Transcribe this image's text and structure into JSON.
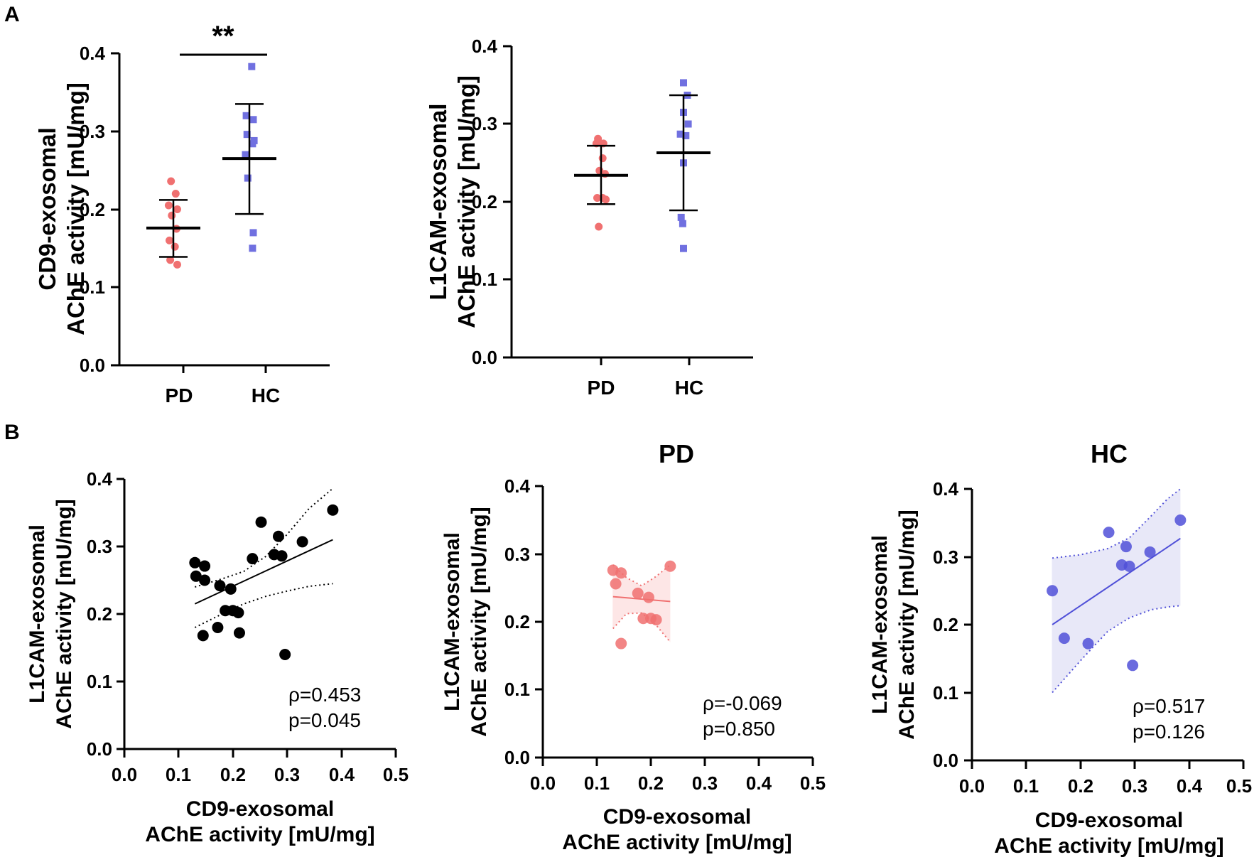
{
  "figure": {
    "panel_a": "A",
    "panel_b": "B"
  },
  "chart_data": [
    {
      "id": "a1",
      "type": "scatter",
      "subtype": "dot-plot-mean-sd",
      "title": "",
      "ylabel_line1": "CD9-exosomal",
      "ylabel_line2": "AChE activity [mU/mg]",
      "ylim": [
        0,
        0.4
      ],
      "yticks": [
        "0.0",
        "0.1",
        "0.2",
        "0.3",
        "0.4"
      ],
      "categories": [
        "PD",
        "HC"
      ],
      "significance": "**",
      "groups": [
        {
          "name": "PD",
          "color": "#f07070",
          "marker": "circle",
          "mean": 0.176,
          "sd_low": 0.139,
          "sd_high": 0.212,
          "points": [
            [
              -0.03,
              0.236
            ],
            [
              0.03,
              0.22
            ],
            [
              -0.06,
              0.205
            ],
            [
              0.05,
              0.2
            ],
            [
              -0.02,
              0.192
            ],
            [
              0.04,
              0.175
            ],
            [
              -0.05,
              0.16
            ],
            [
              0.02,
              0.152
            ],
            [
              -0.04,
              0.135
            ],
            [
              0.05,
              0.129
            ]
          ]
        },
        {
          "name": "HC",
          "color": "#7070e0",
          "marker": "square",
          "mean": 0.265,
          "sd_low": 0.194,
          "sd_high": 0.335,
          "points": [
            [
              0.03,
              0.383
            ],
            [
              -0.04,
              0.32
            ],
            [
              0.05,
              0.315
            ],
            [
              -0.03,
              0.296
            ],
            [
              0.06,
              0.288
            ],
            [
              0.04,
              0.284
            ],
            [
              -0.05,
              0.27
            ],
            [
              -0.02,
              0.24
            ],
            [
              0.05,
              0.17
            ],
            [
              0.04,
              0.15
            ]
          ]
        }
      ]
    },
    {
      "id": "a2",
      "type": "scatter",
      "subtype": "dot-plot-mean-sd",
      "title": "",
      "ylabel_line1": "L1CAM-exosomal",
      "ylabel_line2": "AChE activity [mU/mg]",
      "ylim": [
        0,
        0.4
      ],
      "yticks": [
        "0.0",
        "0.1",
        "0.2",
        "0.3",
        "0.4"
      ],
      "categories": [
        "PD",
        "HC"
      ],
      "groups": [
        {
          "name": "PD",
          "color": "#f07070",
          "marker": "circle",
          "mean": 0.234,
          "sd_low": 0.197,
          "sd_high": 0.272,
          "points": [
            [
              -0.04,
              0.281
            ],
            [
              0.03,
              0.275
            ],
            [
              -0.06,
              0.275
            ],
            [
              0.02,
              0.256
            ],
            [
              -0.02,
              0.24
            ],
            [
              0.05,
              0.236
            ],
            [
              -0.05,
              0.205
            ],
            [
              0.02,
              0.205
            ],
            [
              0.06,
              0.203
            ],
            [
              -0.03,
              0.168
            ]
          ]
        },
        {
          "name": "HC",
          "color": "#7070e0",
          "marker": "square",
          "mean": 0.263,
          "sd_low": 0.189,
          "sd_high": 0.337,
          "points": [
            [
              0.0,
              0.353
            ],
            [
              0.05,
              0.337
            ],
            [
              0.0,
              0.315
            ],
            [
              0.06,
              0.3
            ],
            [
              0.03,
              0.285
            ],
            [
              -0.04,
              0.287
            ],
            [
              0.0,
              0.25
            ],
            [
              -0.03,
              0.18
            ],
            [
              -0.01,
              0.172
            ],
            [
              0.0,
              0.14
            ]
          ]
        }
      ]
    },
    {
      "id": "b1",
      "type": "scatter",
      "title": "",
      "xlabel_line1": "CD9-exosomal",
      "xlabel_line2": "AChE activity [mU/mg]",
      "ylabel_line1": "L1CAM-exosomal",
      "ylabel_line2": "AChE activity [mU/mg]",
      "xlim": [
        0,
        0.5
      ],
      "ylim": [
        0,
        0.4
      ],
      "xticks": [
        "0.0",
        "0.1",
        "0.2",
        "0.3",
        "0.4",
        "0.5"
      ],
      "yticks": [
        "0.0",
        "0.1",
        "0.2",
        "0.3",
        "0.4"
      ],
      "color": "#000000",
      "band_fill": "none",
      "stats_rho": "ρ=0.453",
      "stats_p": "p=0.045",
      "points": [
        [
          0.13,
          0.276
        ],
        [
          0.148,
          0.271
        ],
        [
          0.132,
          0.256
        ],
        [
          0.148,
          0.25
        ],
        [
          0.176,
          0.242
        ],
        [
          0.196,
          0.237
        ],
        [
          0.186,
          0.205
        ],
        [
          0.2,
          0.205
        ],
        [
          0.21,
          0.202
        ],
        [
          0.212,
          0.172
        ],
        [
          0.145,
          0.168
        ],
        [
          0.172,
          0.18
        ],
        [
          0.236,
          0.282
        ],
        [
          0.252,
          0.336
        ],
        [
          0.276,
          0.288
        ],
        [
          0.284,
          0.315
        ],
        [
          0.29,
          0.286
        ],
        [
          0.296,
          0.14
        ],
        [
          0.328,
          0.307
        ],
        [
          0.384,
          0.354
        ]
      ],
      "fit": [
        [
          0.13,
          0.215
        ],
        [
          0.384,
          0.31
        ]
      ],
      "ci_upper": [
        [
          0.13,
          0.24
        ],
        [
          0.18,
          0.252
        ],
        [
          0.22,
          0.263
        ],
        [
          0.26,
          0.285
        ],
        [
          0.3,
          0.318
        ],
        [
          0.34,
          0.356
        ],
        [
          0.384,
          0.386
        ]
      ],
      "ci_lower": [
        [
          0.13,
          0.18
        ],
        [
          0.18,
          0.2
        ],
        [
          0.22,
          0.215
        ],
        [
          0.26,
          0.226
        ],
        [
          0.3,
          0.234
        ],
        [
          0.34,
          0.241
        ],
        [
          0.384,
          0.245
        ]
      ]
    },
    {
      "id": "b2",
      "type": "scatter",
      "title": "PD",
      "xlabel_line1": "CD9-exosomal",
      "xlabel_line2": "AChE activity [mU/mg]",
      "ylabel_line1": "L1CAM-exosomal",
      "ylabel_line2": "AChE activity [mU/mg]",
      "xlim": [
        0,
        0.5
      ],
      "ylim": [
        0,
        0.4
      ],
      "xticks": [
        "0.0",
        "0.1",
        "0.2",
        "0.3",
        "0.4",
        "0.5"
      ],
      "yticks": [
        "0.0",
        "0.1",
        "0.2",
        "0.3",
        "0.4"
      ],
      "color": "#f07070",
      "band_fill": "#fde6e6",
      "stats_rho": "ρ=-0.069",
      "stats_p": "p=0.850",
      "points": [
        [
          0.13,
          0.276
        ],
        [
          0.145,
          0.272
        ],
        [
          0.135,
          0.256
        ],
        [
          0.236,
          0.282
        ],
        [
          0.176,
          0.242
        ],
        [
          0.196,
          0.236
        ],
        [
          0.186,
          0.205
        ],
        [
          0.2,
          0.205
        ],
        [
          0.21,
          0.203
        ],
        [
          0.145,
          0.168
        ]
      ],
      "fit": [
        [
          0.13,
          0.237
        ],
        [
          0.236,
          0.23
        ]
      ],
      "ci_upper": [
        [
          0.13,
          0.284
        ],
        [
          0.155,
          0.265
        ],
        [
          0.183,
          0.253
        ],
        [
          0.21,
          0.267
        ],
        [
          0.236,
          0.284
        ]
      ],
      "ci_lower": [
        [
          0.13,
          0.19
        ],
        [
          0.155,
          0.212
        ],
        [
          0.183,
          0.213
        ],
        [
          0.21,
          0.195
        ],
        [
          0.236,
          0.17
        ]
      ]
    },
    {
      "id": "b3",
      "type": "scatter",
      "title": "HC",
      "xlabel_line1": "CD9-exosomal",
      "xlabel_line2": "AChE activity [mU/mg]",
      "ylabel_line1": "L1CAM-exosomal",
      "ylabel_line2": "AChE activity [mU/mg]",
      "xlim": [
        0,
        0.5
      ],
      "ylim": [
        0,
        0.4
      ],
      "xticks": [
        "0.0",
        "0.1",
        "0.2",
        "0.3",
        "0.4",
        "0.5"
      ],
      "yticks": [
        "0.0",
        "0.1",
        "0.2",
        "0.3",
        "0.4"
      ],
      "color": "#5050d8",
      "band_fill": "#e8e8f8",
      "stats_rho": "ρ=0.517",
      "stats_p": "p=0.126",
      "points": [
        [
          0.148,
          0.25
        ],
        [
          0.17,
          0.18
        ],
        [
          0.214,
          0.172
        ],
        [
          0.252,
          0.336
        ],
        [
          0.276,
          0.288
        ],
        [
          0.284,
          0.315
        ],
        [
          0.29,
          0.286
        ],
        [
          0.296,
          0.14
        ],
        [
          0.328,
          0.307
        ],
        [
          0.384,
          0.354
        ]
      ],
      "fit": [
        [
          0.148,
          0.2
        ],
        [
          0.384,
          0.327
        ]
      ],
      "ci_upper": [
        [
          0.148,
          0.298
        ],
        [
          0.2,
          0.303
        ],
        [
          0.25,
          0.312
        ],
        [
          0.29,
          0.328
        ],
        [
          0.33,
          0.36
        ],
        [
          0.36,
          0.385
        ],
        [
          0.384,
          0.4
        ]
      ],
      "ci_lower": [
        [
          0.148,
          0.1
        ],
        [
          0.2,
          0.147
        ],
        [
          0.25,
          0.19
        ],
        [
          0.29,
          0.21
        ],
        [
          0.33,
          0.222
        ],
        [
          0.36,
          0.226
        ],
        [
          0.384,
          0.228
        ]
      ]
    }
  ]
}
